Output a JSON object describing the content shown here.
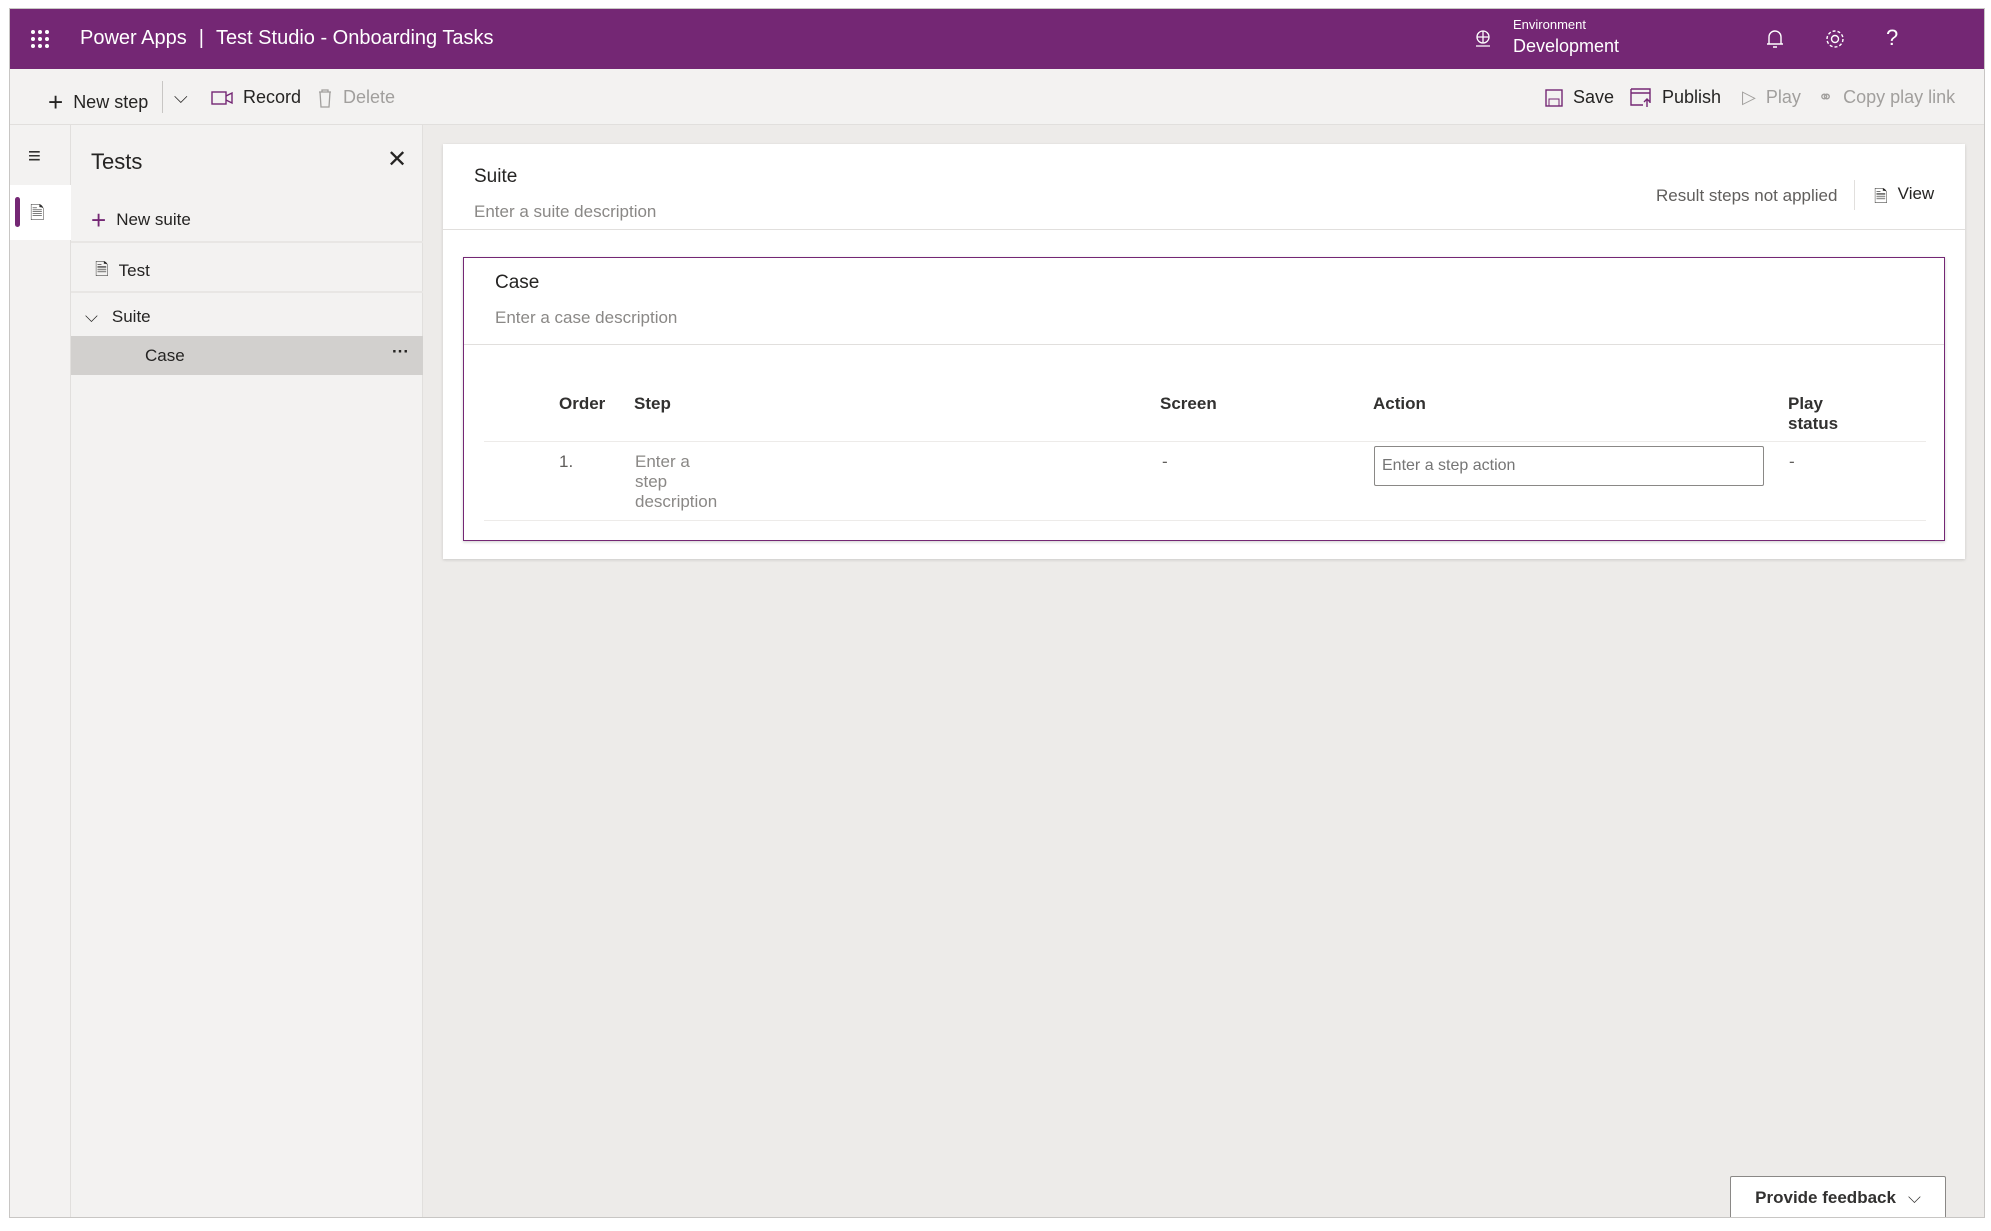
{
  "header": {
    "app": "Power Apps",
    "separator": "|",
    "title": "Test Studio - Onboarding Tasks",
    "env_label": "Environment",
    "env_value": "Development",
    "icons": [
      "waffle-icon",
      "globe-icon",
      "bell-icon",
      "gear-icon",
      "help-icon"
    ]
  },
  "toolbar": {
    "new_step": "New step",
    "record": "Record",
    "delete": "Delete",
    "save": "Save",
    "publish": "Publish",
    "play": "Play",
    "copy_play_link": "Copy play link"
  },
  "sidebar": {
    "title": "Tests",
    "new_suite": "New suite",
    "test": "Test",
    "suite": "Suite",
    "case": "Case",
    "more": "···"
  },
  "suite": {
    "title": "Suite",
    "description_placeholder": "Enter a suite description",
    "result_status": "Result steps not applied",
    "view": "View"
  },
  "case": {
    "title": "Case",
    "description_placeholder": "Enter a case description",
    "columns": [
      "Order",
      "Step",
      "Screen",
      "Action",
      "Play status"
    ],
    "rows": [
      {
        "order": "1.",
        "step_placeholder": "Enter a step description",
        "screen": "-",
        "action_placeholder": "Enter a step action",
        "play_status": "-"
      }
    ]
  },
  "feedback": {
    "label": "Provide feedback"
  },
  "colors": {
    "brand": "#742774"
  }
}
